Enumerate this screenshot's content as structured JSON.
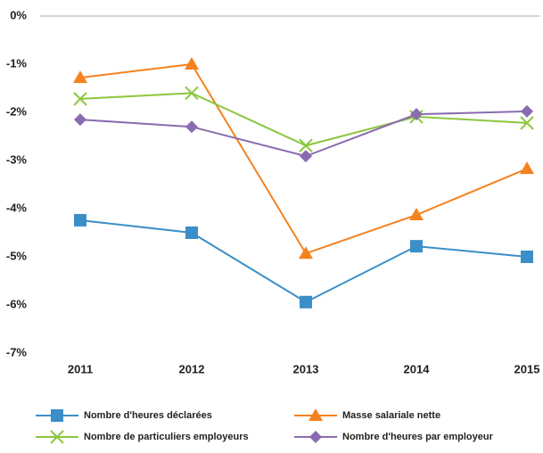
{
  "chart_data": {
    "type": "line",
    "categories": [
      "2011",
      "2012",
      "2013",
      "2014",
      "2015"
    ],
    "series": [
      {
        "name": "Nombre d'heures déclarées",
        "color": "#3b8ec8",
        "marker": "square",
        "values": [
          -4.24,
          -4.5,
          -5.94,
          -4.78,
          -5.0
        ]
      },
      {
        "name": "Masse salariale nette",
        "color": "#f5821f",
        "marker": "triangle",
        "values": [
          -1.28,
          -1.0,
          -4.93,
          -4.13,
          -3.17
        ]
      },
      {
        "name": "Nombre de particuliers employeurs",
        "color": "#8cc63f",
        "marker": "x",
        "values": [
          -1.72,
          -1.6,
          -2.69,
          -2.09,
          -2.22
        ]
      },
      {
        "name": "Nombre d'heures par employeur",
        "color": "#8a6bb0",
        "marker": "diamond",
        "values": [
          -2.15,
          -2.3,
          -2.91,
          -2.04,
          -1.98
        ]
      }
    ],
    "ylim": [
      -7,
      0
    ],
    "yticks": [
      {
        "value": 0,
        "label": "0%"
      },
      {
        "value": -1,
        "label": "-1%"
      },
      {
        "value": -2,
        "label": "-2%"
      },
      {
        "value": -3,
        "label": "-3%"
      },
      {
        "value": -4,
        "label": "-4%"
      },
      {
        "value": -5,
        "label": "-5%"
      },
      {
        "value": -6,
        "label": "-6%"
      },
      {
        "value": -7,
        "label": "-7%"
      }
    ],
    "grid": false,
    "legend": "bottom"
  }
}
